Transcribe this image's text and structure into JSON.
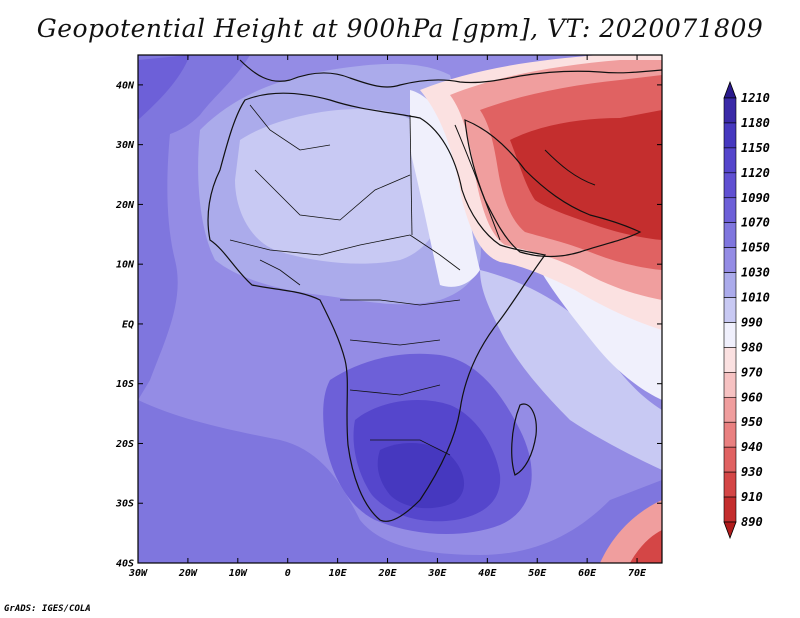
{
  "title": "Geopotential Height at 900hPa [gpm], VT: 2020071809",
  "credit": "GrADS: IGES/COLA",
  "map": {
    "lon_range": [
      -30,
      75
    ],
    "lat_range": [
      -40,
      45
    ],
    "lat_ticks": [
      {
        "value": 40,
        "label": "40N"
      },
      {
        "value": 30,
        "label": "30N"
      },
      {
        "value": 20,
        "label": "20N"
      },
      {
        "value": 10,
        "label": "10N"
      },
      {
        "value": 0,
        "label": "EQ"
      },
      {
        "value": -10,
        "label": "10S"
      },
      {
        "value": -20,
        "label": "20S"
      },
      {
        "value": -30,
        "label": "30S"
      },
      {
        "value": -40,
        "label": "40S"
      }
    ],
    "lon_ticks": [
      {
        "value": -30,
        "label": "30W"
      },
      {
        "value": -20,
        "label": "20W"
      },
      {
        "value": -10,
        "label": "10W"
      },
      {
        "value": 0,
        "label": "0"
      },
      {
        "value": 10,
        "label": "10E"
      },
      {
        "value": 20,
        "label": "20E"
      },
      {
        "value": 30,
        "label": "30E"
      },
      {
        "value": 40,
        "label": "40E"
      },
      {
        "value": 50,
        "label": "50E"
      },
      {
        "value": 60,
        "label": "60E"
      },
      {
        "value": 70,
        "label": "70E"
      }
    ]
  },
  "colorbar": {
    "levels": [
      "1210",
      "1180",
      "1150",
      "1120",
      "1090",
      "1070",
      "1050",
      "1030",
      "1010",
      "990",
      "980",
      "970",
      "960",
      "950",
      "940",
      "930",
      "910",
      "890"
    ],
    "colors": [
      "#2a1a8c",
      "#3a2aa8",
      "#4638bf",
      "#5546cc",
      "#6050d2",
      "#6d60d8",
      "#7f76de",
      "#948ce5",
      "#ababeb",
      "#c8c9f3",
      "#f0f0fc",
      "#fbe1e1",
      "#f6c2c2",
      "#f09e9e",
      "#e98080",
      "#e06262",
      "#d44646",
      "#c42e2e",
      "#b01b1b"
    ]
  }
}
